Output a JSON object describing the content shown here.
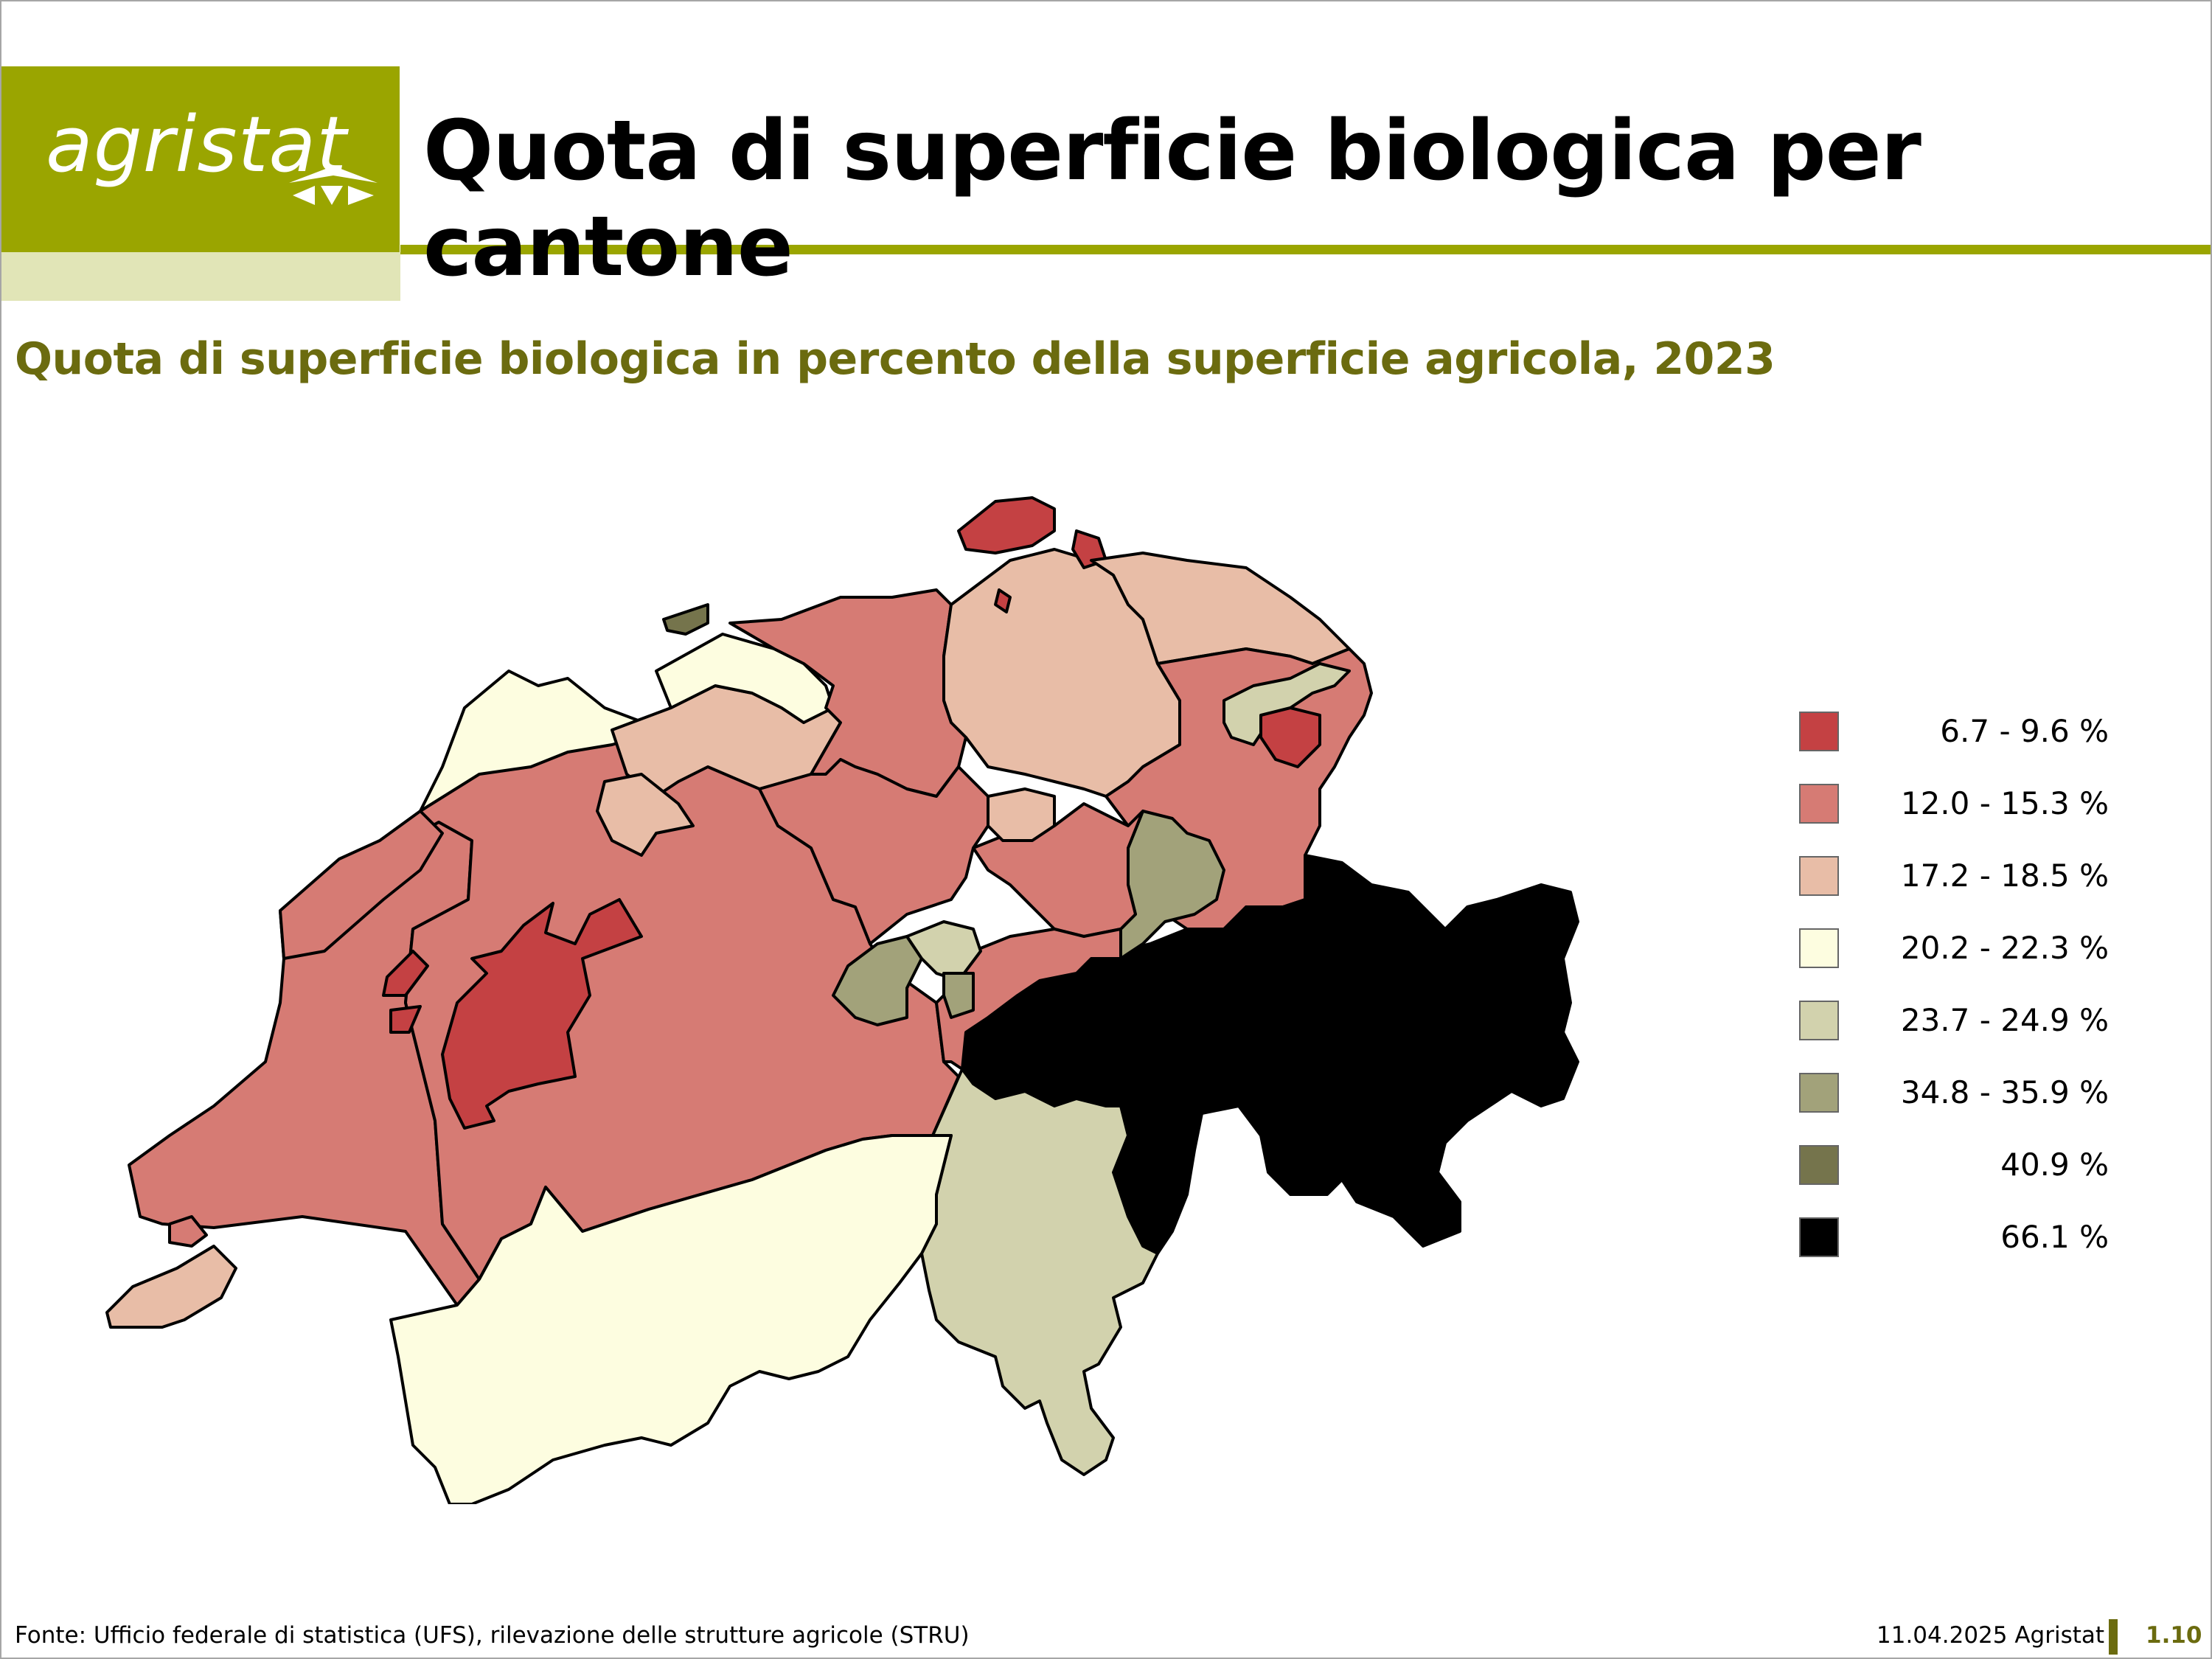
{
  "header": {
    "logo_text": "agristat",
    "title": "Quota di superficie biologica per cantone"
  },
  "subtitle": "Quota di superficie biologica in percento della superficie agricola, 2023",
  "colors": {
    "brand_olive": "#9aa500",
    "brand_light": "#e1e5b7",
    "subtitle_color": "#6b6b0f"
  },
  "legend": {
    "items": [
      {
        "label": "6.7 - 9.6 %",
        "color": "#c44143"
      },
      {
        "label": "12.0 - 15.3 %",
        "color": "#d67b74"
      },
      {
        "label": "17.2 - 18.5 %",
        "color": "#e8bda7"
      },
      {
        "label": "20.2 - 22.3 %",
        "color": "#fdfde0"
      },
      {
        "label": "23.7 - 24.9 %",
        "color": "#d2d2ad"
      },
      {
        "label": "34.8 - 35.9 %",
        "color": "#a2a27a"
      },
      {
        "label": "40.9 %",
        "color": "#75744c"
      },
      {
        "label": "66.1 %",
        "color": "#000000"
      }
    ]
  },
  "footer": {
    "source": "Fonte: Ufficio federale di statistica (UFS), rilevazione delle strutture agricole (STRU)",
    "date": "11.04.2025 Agristat",
    "page": "1.10"
  }
}
